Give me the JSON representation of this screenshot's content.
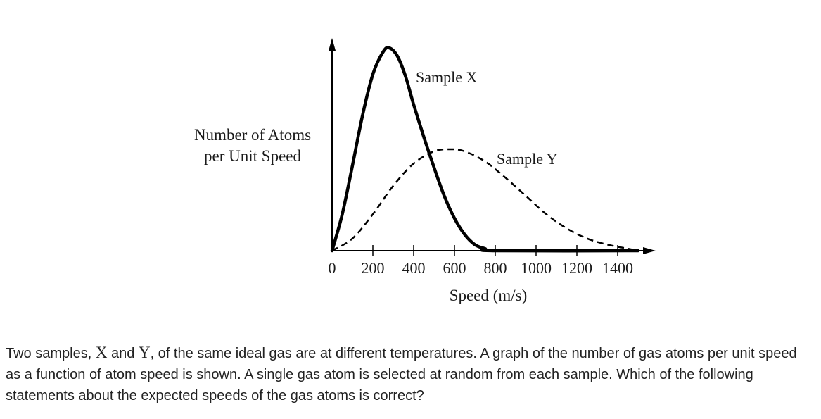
{
  "chart_data": {
    "type": "line",
    "xlabel": "Speed (m/s)",
    "ylabel": [
      "Number of Atoms",
      "per Unit Speed"
    ],
    "xlim": [
      0,
      1500
    ],
    "x_ticks": [
      0,
      200,
      400,
      600,
      800,
      1000,
      1200,
      1400
    ],
    "y_ticks": [],
    "grid": false,
    "series": [
      {
        "name": "Sample X",
        "style": "solid",
        "points": [
          [
            0,
            0
          ],
          [
            50,
            0.18
          ],
          [
            100,
            0.42
          ],
          [
            150,
            0.67
          ],
          [
            200,
            0.87
          ],
          [
            250,
            0.98
          ],
          [
            280,
            1.0
          ],
          [
            320,
            0.96
          ],
          [
            360,
            0.86
          ],
          [
            400,
            0.72
          ],
          [
            450,
            0.56
          ],
          [
            500,
            0.41
          ],
          [
            550,
            0.27
          ],
          [
            600,
            0.16
          ],
          [
            650,
            0.08
          ],
          [
            700,
            0.03
          ],
          [
            750,
            0.01
          ],
          [
            800,
            0.0
          ],
          [
            1500,
            0.0
          ]
        ]
      },
      {
        "name": "Sample Y",
        "style": "dashed",
        "points": [
          [
            0,
            0
          ],
          [
            100,
            0.06
          ],
          [
            200,
            0.18
          ],
          [
            300,
            0.32
          ],
          [
            400,
            0.43
          ],
          [
            500,
            0.49
          ],
          [
            580,
            0.5
          ],
          [
            650,
            0.49
          ],
          [
            750,
            0.44
          ],
          [
            850,
            0.36
          ],
          [
            950,
            0.27
          ],
          [
            1050,
            0.18
          ],
          [
            1150,
            0.11
          ],
          [
            1250,
            0.06
          ],
          [
            1350,
            0.03
          ],
          [
            1450,
            0.01
          ],
          [
            1500,
            0.0
          ]
        ]
      }
    ]
  },
  "question": {
    "parts": [
      {
        "t": "Two samples, ",
        "var": false
      },
      {
        "t": "X",
        "var": true
      },
      {
        "t": " and ",
        "var": false
      },
      {
        "t": "Y",
        "var": true
      },
      {
        "t": ", of the same ideal gas are at different temperatures. A graph of the number of gas atoms per unit speed as a function of atom speed is shown. A single gas atom is selected at random from each sample. Which of the following statements about the expected speeds of the gas atoms is correct?",
        "var": false
      }
    ]
  }
}
